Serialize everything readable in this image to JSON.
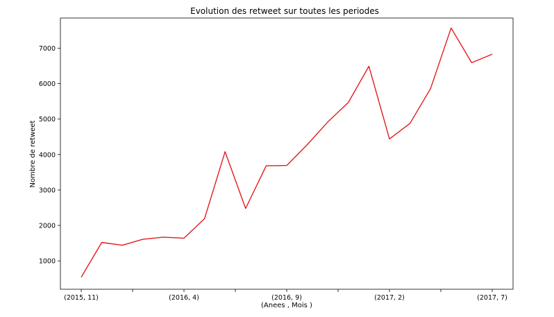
{
  "chart_data": {
    "type": "line",
    "title": "Evolution des retweet sur toutes les periodes",
    "xlabel": "(Anees , Mois )",
    "ylabel": "Nombre de retweet",
    "x_tick_labels": [
      "(2015, 11)",
      "(2016, 4)",
      "(2016, 9)",
      "(2017, 2)",
      "(2017, 7)"
    ],
    "y_ticks": [
      1000,
      2000,
      3000,
      4000,
      5000,
      6000,
      7000
    ],
    "ylim": [
      200,
      7850
    ],
    "grid": false,
    "color": "#e41a1c",
    "series": [
      {
        "values": [
          540,
          1520,
          1440,
          1610,
          1670,
          1640,
          2190,
          4080,
          2480,
          3680,
          3690,
          4280,
          4920,
          5470,
          6490,
          4440,
          4880,
          5860,
          7570,
          6590,
          6830
        ]
      }
    ],
    "x": [
      "(2015, 11)",
      "(2015, 12)",
      "(2016, 1)",
      "(2016, 2)",
      "(2016, 3)",
      "(2016, 4)",
      "(2016, 5)",
      "(2016, 6)",
      "(2016, 7)",
      "(2016, 8)",
      "(2016, 9)",
      "(2016, 10)",
      "(2016, 11)",
      "(2016, 12)",
      "(2017, 1)",
      "(2017, 2)",
      "(2017, 3)",
      "(2017, 4)",
      "(2017, 5)",
      "(2017, 6)",
      "(2017, 7)"
    ]
  }
}
